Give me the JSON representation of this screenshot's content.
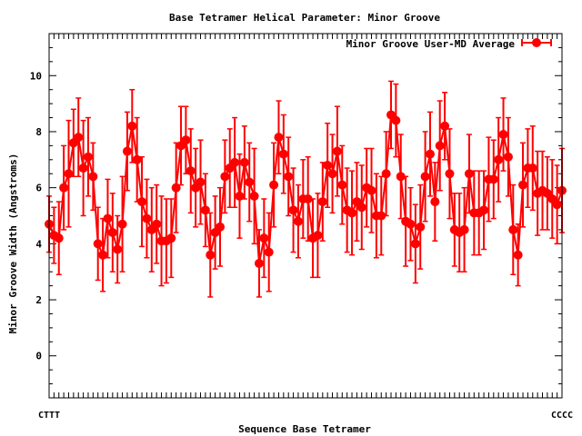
{
  "chart_data": {
    "type": "line",
    "title": "Base Tetramer Helical Parameter: Minor Groove",
    "xlabel": "Sequence Base Tetramer",
    "ylabel": "Minor Groove Width (Angstroms)",
    "ylim": [
      -1.5,
      11.5
    ],
    "yticks": [
      0,
      2,
      4,
      6,
      8,
      10
    ],
    "xtick_first": "CTTT",
    "xtick_last": "CCCC",
    "legend_position": "top-right",
    "grid": false,
    "series": [
      {
        "name": "Minor Groove User-MD Average",
        "color": "#ff0000",
        "x": [
          1,
          2,
          3,
          4,
          5,
          6,
          7,
          8,
          9,
          10,
          11,
          12,
          13,
          14,
          15,
          16,
          17,
          18,
          19,
          20,
          21,
          22,
          23,
          24,
          25,
          26,
          27,
          28,
          29,
          30,
          31,
          32,
          33,
          34,
          35,
          36,
          37,
          38,
          39,
          40,
          41,
          42,
          43,
          44,
          45,
          46,
          47,
          48,
          49,
          50,
          51,
          52,
          53,
          54,
          55,
          56,
          57,
          58,
          59,
          60,
          61,
          62,
          63,
          64,
          65,
          66,
          67,
          68,
          69,
          70,
          71,
          72,
          73,
          74,
          75,
          76,
          77,
          78,
          79,
          80,
          81,
          82,
          83,
          84,
          85,
          86,
          87,
          88,
          89,
          90,
          91,
          92,
          93,
          94,
          95,
          96,
          97,
          98,
          99,
          100,
          101,
          102,
          103,
          104,
          105,
          106
        ],
        "values": [
          4.7,
          4.3,
          4.2,
          6.0,
          6.5,
          7.6,
          7.8,
          6.7,
          7.1,
          6.4,
          4.0,
          3.6,
          4.9,
          4.4,
          3.8,
          4.7,
          7.3,
          8.2,
          7.0,
          5.5,
          4.9,
          4.5,
          4.7,
          4.1,
          4.1,
          4.2,
          6.0,
          7.5,
          7.7,
          6.6,
          6.0,
          6.2,
          5.2,
          3.6,
          4.4,
          4.6,
          6.4,
          6.7,
          6.9,
          5.7,
          6.9,
          6.2,
          5.7,
          3.3,
          4.2,
          3.7,
          6.1,
          7.8,
          7.2,
          6.4,
          5.2,
          4.8,
          5.6,
          5.6,
          4.2,
          4.3,
          5.5,
          6.8,
          6.5,
          7.3,
          6.1,
          5.2,
          5.1,
          5.5,
          5.3,
          6.0,
          5.9,
          5.0,
          5.0,
          6.5,
          8.6,
          8.4,
          6.4,
          4.8,
          4.7,
          4.0,
          4.6,
          6.4,
          7.2,
          5.5,
          7.5,
          8.2,
          6.5,
          4.5,
          4.4,
          4.5,
          6.5,
          5.1,
          5.1,
          5.2,
          6.3,
          6.3,
          7.0,
          7.9,
          7.1,
          4.5,
          3.6,
          6.1,
          6.7,
          6.7,
          5.8,
          5.9,
          5.8,
          5.6,
          5.4,
          5.9
        ],
        "errors": [
          1.0,
          1.0,
          1.3,
          1.5,
          1.9,
          1.2,
          1.4,
          1.7,
          1.4,
          1.2,
          1.3,
          1.3,
          1.4,
          1.4,
          1.2,
          1.7,
          1.4,
          1.3,
          1.5,
          1.6,
          1.4,
          1.5,
          1.4,
          1.6,
          1.5,
          1.4,
          1.6,
          1.4,
          1.2,
          1.5,
          1.4,
          1.5,
          1.3,
          1.5,
          1.3,
          1.4,
          1.3,
          1.4,
          1.6,
          1.5,
          1.3,
          1.4,
          1.7,
          1.2,
          1.4,
          1.4,
          1.5,
          1.3,
          1.4,
          1.4,
          1.5,
          1.3,
          1.4,
          1.5,
          1.4,
          1.5,
          1.4,
          1.5,
          1.4,
          1.6,
          1.4,
          1.5,
          1.5,
          1.4,
          1.5,
          1.4,
          1.5,
          1.5,
          1.4,
          1.5,
          1.2,
          1.3,
          1.5,
          1.6,
          1.3,
          1.4,
          1.5,
          1.6,
          1.5,
          1.4,
          1.6,
          1.2,
          1.6,
          1.3,
          1.4,
          1.5,
          1.4,
          1.5,
          1.5,
          1.4,
          1.5,
          1.4,
          1.5,
          1.3,
          1.4,
          1.6,
          1.1,
          1.5,
          1.4,
          1.5,
          1.5,
          1.4,
          1.3,
          1.4,
          1.4,
          1.5
        ]
      }
    ]
  }
}
